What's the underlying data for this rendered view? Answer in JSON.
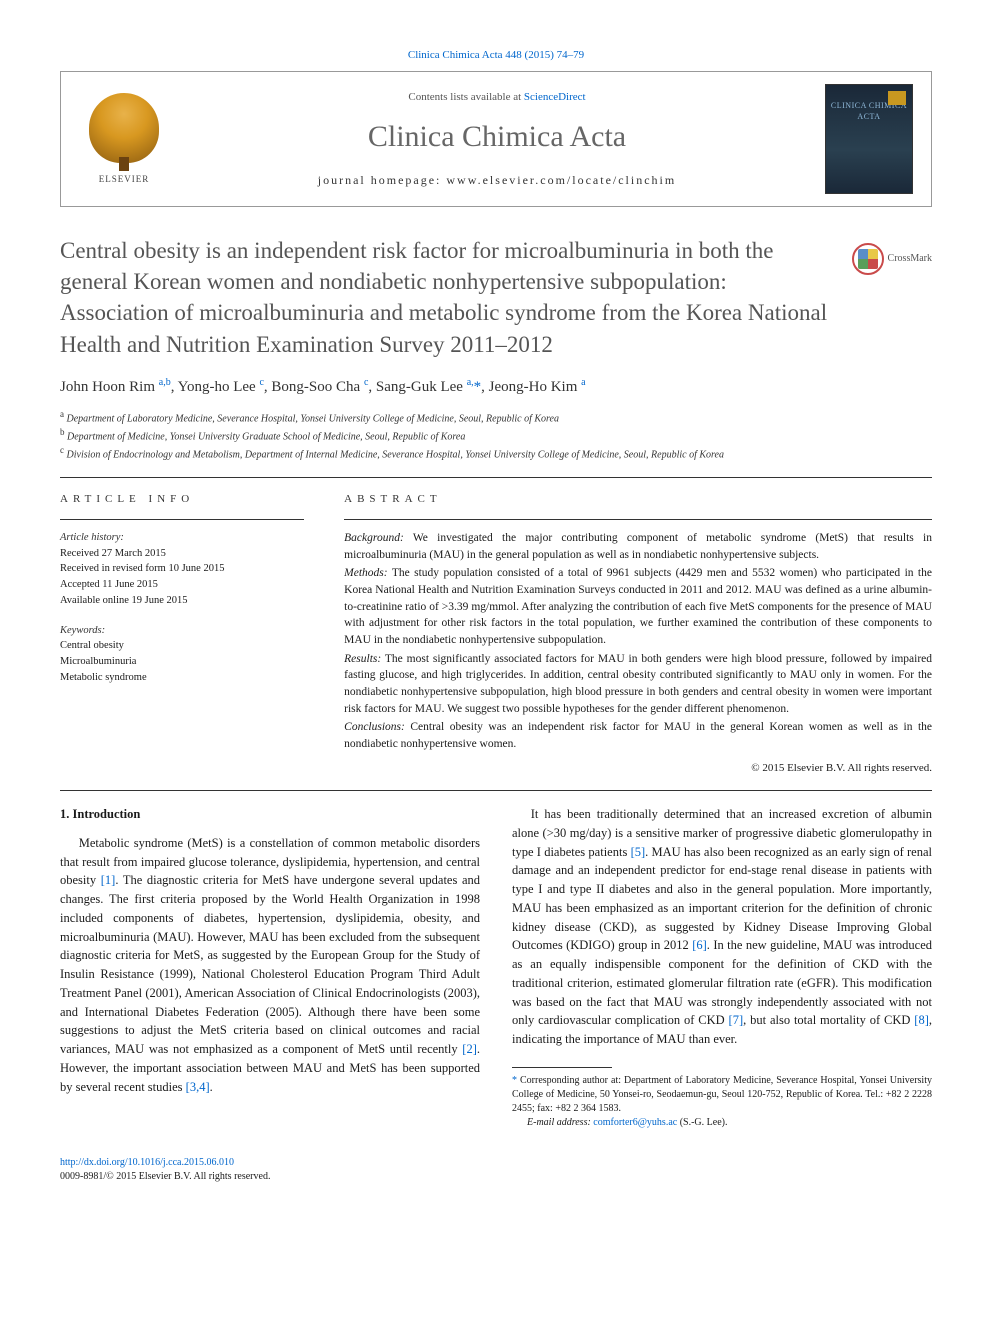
{
  "citation": "Clinica Chimica Acta 448 (2015) 74–79",
  "header": {
    "contents_line_prefix": "Contents lists available at ",
    "sciencedirect": "ScienceDirect",
    "journal_name": "Clinica Chimica Acta",
    "homepage_prefix": "journal homepage: ",
    "homepage_url": "www.elsevier.com/locate/clinchim",
    "elsevier_label": "ELSEVIER",
    "cover_text": "CLINICA\nCHIMICA\nACTA"
  },
  "crossmark_label": "CrossMark",
  "title": "Central obesity is an independent risk factor for microalbuminuria in both the general Korean women and nondiabetic nonhypertensive subpopulation: Association of microalbuminuria and metabolic syndrome from the Korea National Health and Nutrition Examination Survey 2011–2012",
  "authors_html": "John Hoon Rim <sup>a,b</sup>, Yong-ho Lee <sup>c</sup>, Bong-Soo Cha <sup>c</sup>, Sang-Guk Lee <sup>a,</sup><span class='corr-star'>*</span>, Jeong-Ho Kim <sup>a</sup>",
  "affiliations": [
    {
      "key": "a",
      "text": "Department of Laboratory Medicine, Severance Hospital, Yonsei University College of Medicine, Seoul, Republic of Korea"
    },
    {
      "key": "b",
      "text": "Department of Medicine, Yonsei University Graduate School of Medicine, Seoul, Republic of Korea"
    },
    {
      "key": "c",
      "text": "Division of Endocrinology and Metabolism, Department of Internal Medicine, Severance Hospital, Yonsei University College of Medicine, Seoul, Republic of Korea"
    }
  ],
  "article_info": {
    "heading": "article info",
    "history_label": "Article history:",
    "history": [
      "Received 27 March 2015",
      "Received in revised form 10 June 2015",
      "Accepted 11 June 2015",
      "Available online 19 June 2015"
    ],
    "keywords_label": "Keywords:",
    "keywords": [
      "Central obesity",
      "Microalbuminuria",
      "Metabolic syndrome"
    ]
  },
  "abstract": {
    "heading": "abstract",
    "background_label": "Background:",
    "background": "We investigated the major contributing component of metabolic syndrome (MetS) that results in microalbuminuria (MAU) in the general population as well as in nondiabetic nonhypertensive subjects.",
    "methods_label": "Methods:",
    "methods": "The study population consisted of a total of 9961 subjects (4429 men and 5532 women) who participated in the Korea National Health and Nutrition Examination Surveys conducted in 2011 and 2012. MAU was defined as a urine albumin-to-creatinine ratio of >3.39 mg/mmol. After analyzing the contribution of each five MetS components for the presence of MAU with adjustment for other risk factors in the total population, we further examined the contribution of these components to MAU in the nondiabetic nonhypertensive subpopulation.",
    "results_label": "Results:",
    "results": "The most significantly associated factors for MAU in both genders were high blood pressure, followed by impaired fasting glucose, and high triglycerides. In addition, central obesity contributed significantly to MAU only in women. For the nondiabetic nonhypertensive subpopulation, high blood pressure in both genders and central obesity in women were important risk factors for MAU. We suggest two possible hypotheses for the gender different phenomenon.",
    "conclusions_label": "Conclusions:",
    "conclusions": "Central obesity was an independent risk factor for MAU in the general Korean women as well as in the nondiabetic nonhypertensive women.",
    "copyright": "© 2015 Elsevier B.V. All rights reserved."
  },
  "body": {
    "intro_heading": "1. Introduction",
    "p1a": "Metabolic syndrome (MetS) is a constellation of common metabolic disorders that result from impaired glucose tolerance, dyslipidemia, hypertension, and central obesity ",
    "ref1": "[1]",
    "p1b": ". The diagnostic criteria for MetS have undergone several updates and changes. The first criteria proposed by the World Health Organization in 1998 included components of diabetes, hypertension, dyslipidemia, obesity, and microalbuminuria (MAU). However, MAU has been excluded from the subsequent diagnostic criteria for MetS, as suggested by the European Group for the Study of Insulin Resistance (1999), National Cholesterol Education Program Third Adult Treatment Panel (2001), American Association of Clinical Endocrinologists (2003), and International Diabetes Federation (2005). Although there have been some suggestions to adjust the MetS",
    "p2a": "criteria based on clinical outcomes and racial variances, MAU was not emphasized as a component of MetS until recently ",
    "ref2": "[2]",
    "p2b": ". However, the important association between MAU and MetS has been supported by several recent studies ",
    "ref34": "[3,4]",
    "p2c": ".",
    "p3a": "It has been traditionally determined that an increased excretion of albumin alone (>30 mg/day) is a sensitive marker of progressive diabetic glomerulopathy in type I diabetes patients ",
    "ref5": "[5]",
    "p3b": ". MAU has also been recognized as an early sign of renal damage and an independent predictor for end-stage renal disease in patients with type I and type II diabetes and also in the general population. More importantly, MAU has been emphasized as an important criterion for the definition of chronic kidney disease (CKD), as suggested by Kidney Disease Improving Global Outcomes (KDIGO) group in 2012 ",
    "ref6": "[6]",
    "p3c": ". In the new guideline, MAU was introduced as an equally indispensible component for the definition of CKD with the traditional criterion, estimated glomerular filtration rate (eGFR). This modification was based on the fact that MAU was strongly independently associated with not only cardiovascular complication of CKD ",
    "ref7": "[7]",
    "p3d": ", but also total mortality of CKD ",
    "ref8": "[8]",
    "p3e": ", indicating the importance of MAU than ever."
  },
  "footnote": {
    "corr_marker": "*",
    "corr_text": "Corresponding author at: Department of Laboratory Medicine, Severance Hospital, Yonsei University College of Medicine, 50 Yonsei-ro, Seodaemun-gu, Seoul 120-752, Republic of Korea. Tel.: +82 2 2228 2455; fax: +82 2 364 1583.",
    "email_label": "E-mail address:",
    "email": "comforter6@yuhs.ac",
    "email_suffix": "(S.-G. Lee)."
  },
  "bottom": {
    "doi": "http://dx.doi.org/10.1016/j.cca.2015.06.010",
    "issn_line": "0009-8981/© 2015 Elsevier B.V. All rights reserved."
  },
  "colors": {
    "link": "#0066cc",
    "title_gray": "#555555",
    "text": "#1a1a1a",
    "border": "#333333"
  }
}
